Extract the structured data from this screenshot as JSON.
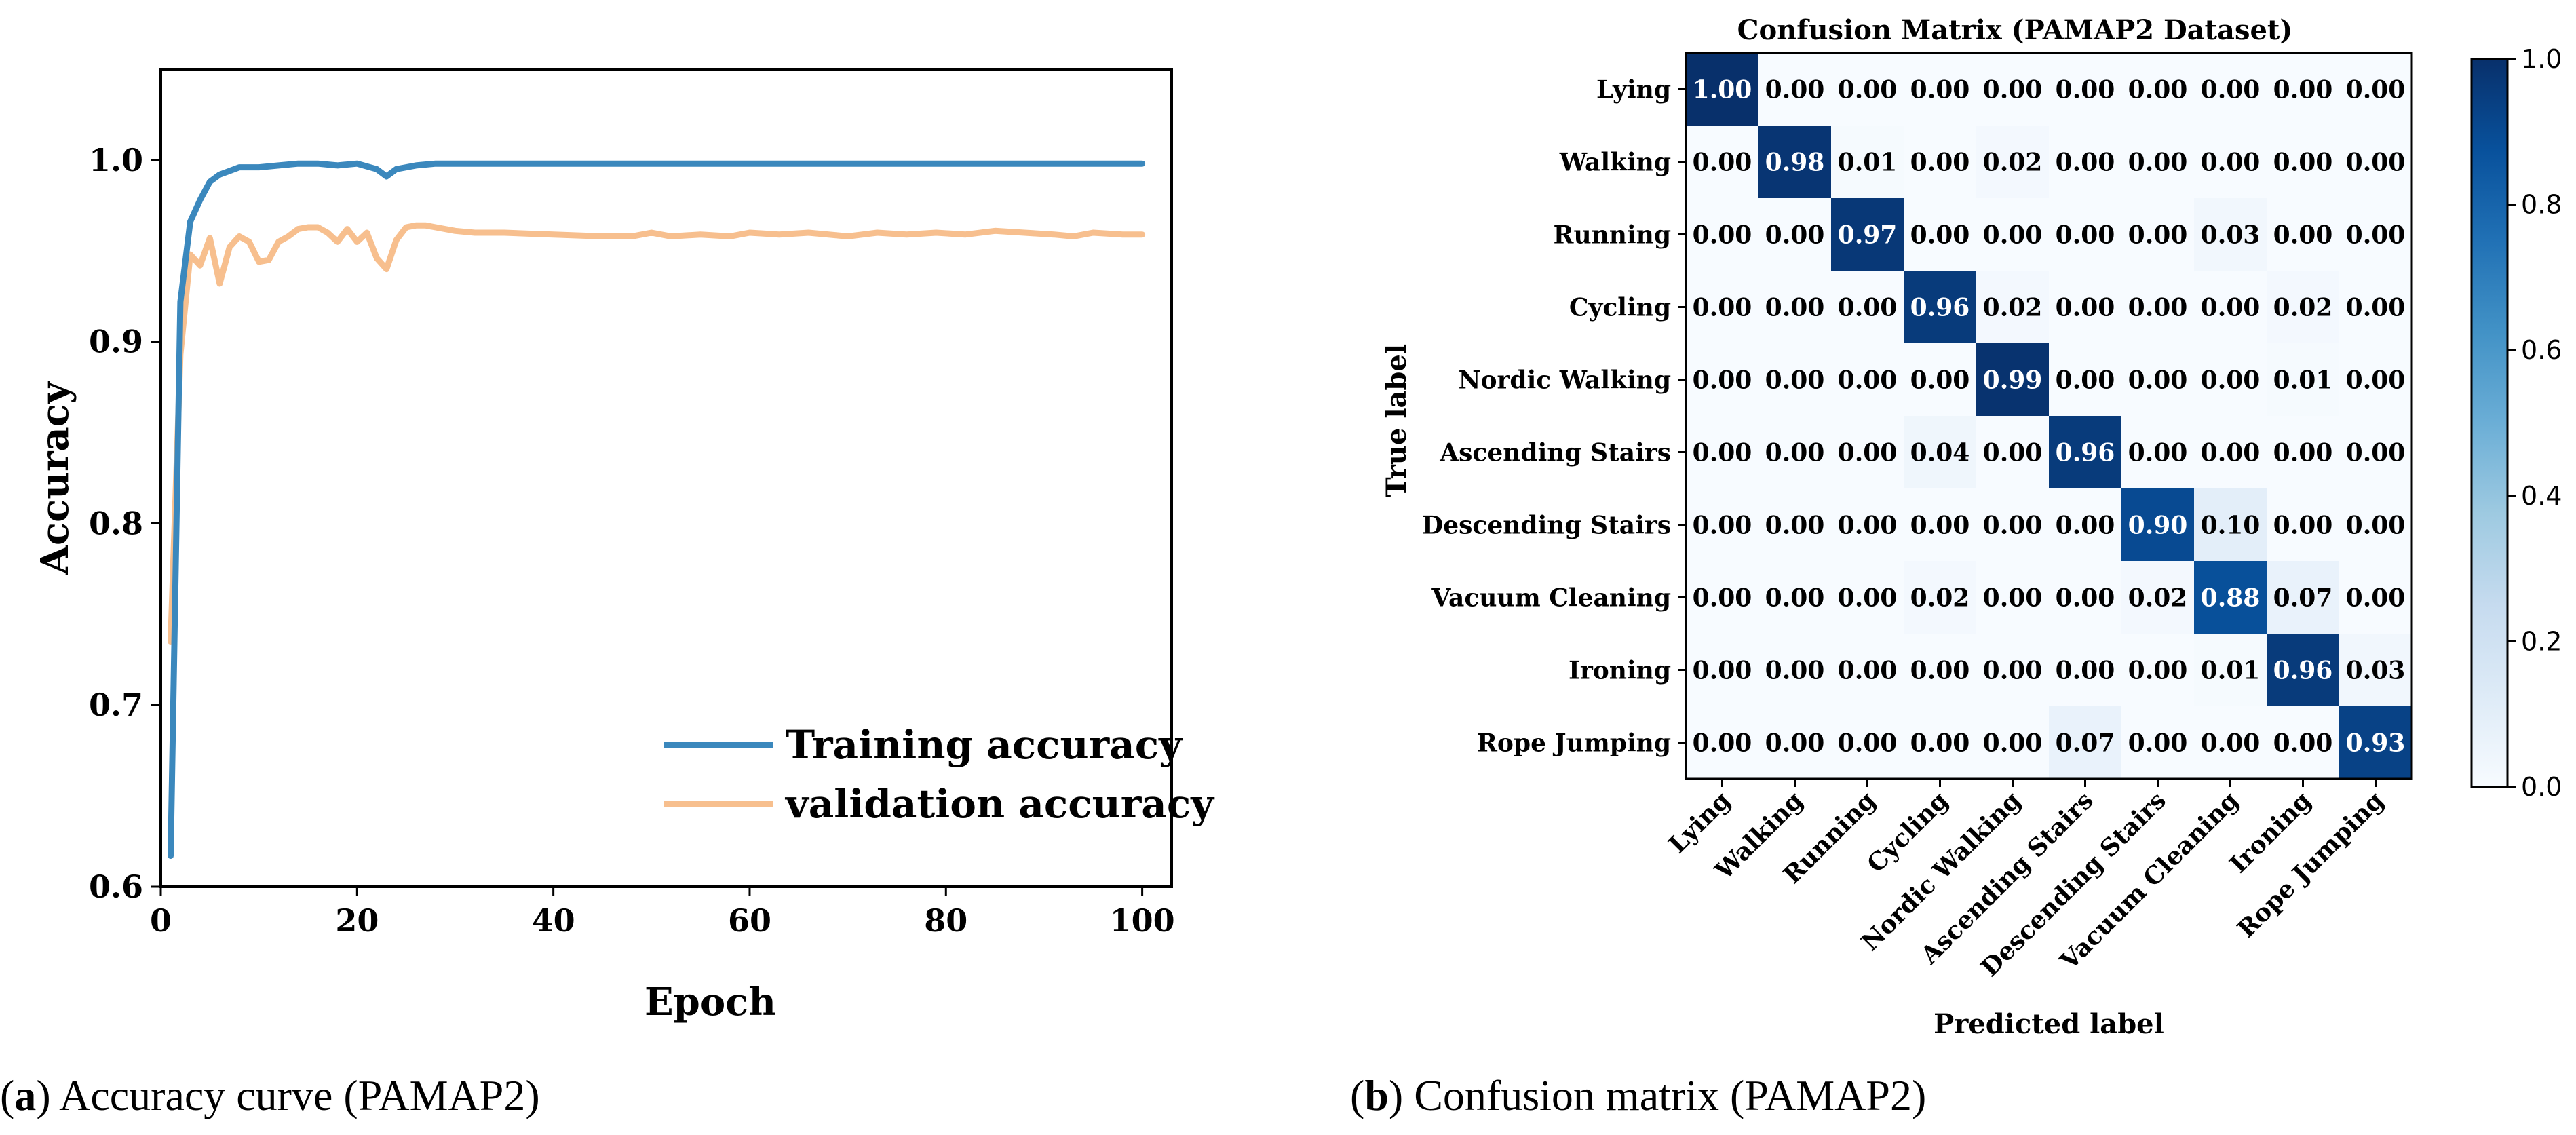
{
  "captions": {
    "a_letter": "a",
    "a_text": " Accuracy curve (PAMAP2)",
    "b_letter": "b",
    "b_text": " Confusion matrix (PAMAP2)"
  },
  "colors": {
    "training": "#3b88bd",
    "validation": "#f7bf8e",
    "cm_low": "#f7fbff",
    "cm_high": "#08306b"
  },
  "chart_data": [
    {
      "type": "line",
      "xlabel": "Epoch",
      "ylabel": "Accuracy",
      "xlim": [
        0,
        103
      ],
      "ylim": [
        0.6,
        1.05
      ],
      "xticks": [
        0,
        20,
        40,
        60,
        80,
        100
      ],
      "yticks": [
        0.6,
        0.7,
        0.8,
        0.9,
        1.0
      ],
      "ytick_labels": [
        "0.6",
        "0.7",
        "0.8",
        "0.9",
        "1.0"
      ],
      "legend_position": "lower-right",
      "series": [
        {
          "name": "Training accuracy",
          "x": [
            1,
            2,
            3,
            4,
            5,
            6,
            7,
            8,
            10,
            12,
            14,
            16,
            18,
            20,
            22,
            23,
            24,
            26,
            28,
            30,
            40,
            50,
            60,
            70,
            80,
            90,
            100
          ],
          "y": [
            0.617,
            0.922,
            0.966,
            0.978,
            0.988,
            0.992,
            0.994,
            0.996,
            0.996,
            0.997,
            0.998,
            0.998,
            0.997,
            0.998,
            0.995,
            0.991,
            0.995,
            0.997,
            0.998,
            0.998,
            0.998,
            0.998,
            0.998,
            0.998,
            0.998,
            0.998,
            0.998
          ]
        },
        {
          "name": "validation accuracy",
          "x": [
            1,
            2,
            3,
            4,
            5,
            6,
            7,
            8,
            9,
            10,
            11,
            12,
            13,
            14,
            15,
            16,
            17,
            18,
            19,
            20,
            21,
            22,
            23,
            24,
            25,
            26,
            27,
            28,
            30,
            32,
            35,
            40,
            45,
            48,
            50,
            52,
            55,
            58,
            60,
            63,
            66,
            70,
            73,
            76,
            79,
            82,
            85,
            88,
            91,
            93,
            95,
            98,
            100
          ],
          "y": [
            0.735,
            0.893,
            0.948,
            0.942,
            0.957,
            0.932,
            0.952,
            0.958,
            0.955,
            0.944,
            0.945,
            0.955,
            0.958,
            0.962,
            0.963,
            0.963,
            0.96,
            0.955,
            0.962,
            0.955,
            0.96,
            0.946,
            0.94,
            0.956,
            0.963,
            0.964,
            0.964,
            0.963,
            0.961,
            0.96,
            0.96,
            0.959,
            0.958,
            0.958,
            0.96,
            0.958,
            0.959,
            0.958,
            0.96,
            0.959,
            0.96,
            0.958,
            0.96,
            0.959,
            0.96,
            0.959,
            0.961,
            0.96,
            0.959,
            0.958,
            0.96,
            0.959,
            0.959
          ]
        }
      ]
    },
    {
      "type": "heatmap",
      "title": "Confusion Matrix (PAMAP2 Dataset)",
      "xlabel": "Predicted label",
      "ylabel": "True label",
      "labels": [
        "Lying",
        "Walking",
        "Running",
        "Cycling",
        "Nordic Walking",
        "Ascending Stairs",
        "Descending Stairs",
        "Vacuum Cleaning",
        "Ironing",
        "Rope Jumping"
      ],
      "matrix": [
        [
          1.0,
          0.0,
          0.0,
          0.0,
          0.0,
          0.0,
          0.0,
          0.0,
          0.0,
          0.0
        ],
        [
          0.0,
          0.98,
          0.01,
          0.0,
          0.02,
          0.0,
          0.0,
          0.0,
          0.0,
          0.0
        ],
        [
          0.0,
          0.0,
          0.97,
          0.0,
          0.0,
          0.0,
          0.0,
          0.03,
          0.0,
          0.0
        ],
        [
          0.0,
          0.0,
          0.0,
          0.96,
          0.02,
          0.0,
          0.0,
          0.0,
          0.02,
          0.0
        ],
        [
          0.0,
          0.0,
          0.0,
          0.0,
          0.99,
          0.0,
          0.0,
          0.0,
          0.01,
          0.0
        ],
        [
          0.0,
          0.0,
          0.0,
          0.04,
          0.0,
          0.96,
          0.0,
          0.0,
          0.0,
          0.0
        ],
        [
          0.0,
          0.0,
          0.0,
          0.0,
          0.0,
          0.0,
          0.9,
          0.1,
          0.0,
          0.0
        ],
        [
          0.0,
          0.0,
          0.0,
          0.02,
          0.0,
          0.0,
          0.02,
          0.88,
          0.07,
          0.0
        ],
        [
          0.0,
          0.0,
          0.0,
          0.0,
          0.0,
          0.0,
          0.0,
          0.01,
          0.96,
          0.03
        ],
        [
          0.0,
          0.0,
          0.0,
          0.0,
          0.0,
          0.07,
          0.0,
          0.0,
          0.0,
          0.93
        ]
      ],
      "colorbar": {
        "range": [
          0.0,
          1.0
        ],
        "ticks": [
          0.0,
          0.2,
          0.4,
          0.6,
          0.8,
          1.0
        ],
        "tick_labels": [
          "0.0",
          "0.2",
          "0.4",
          "0.6",
          "0.8",
          "1.0"
        ]
      }
    }
  ]
}
